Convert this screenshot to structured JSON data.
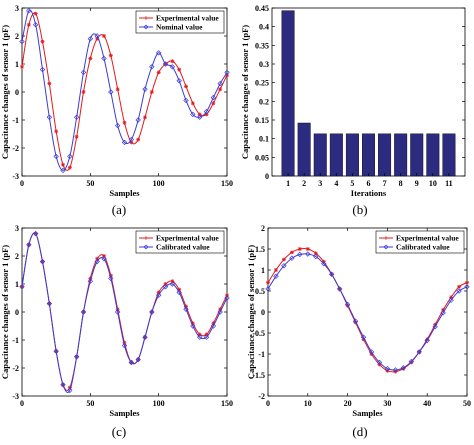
{
  "chart_data": [
    {
      "type": "line",
      "caption": "(a)",
      "xlabel": "Samples",
      "ylabel": "Capacitance changes of sensor 1 (pF)",
      "xlim": [
        0,
        150
      ],
      "ylim": [
        -3,
        3
      ],
      "xticks": [
        0,
        50,
        100,
        150
      ],
      "yticks": [
        -3,
        -2,
        -1,
        0,
        1,
        2,
        3
      ],
      "legend_position": "top-right",
      "series": [
        {
          "name": "Experimental value",
          "color": "#e31a1c",
          "marker": "asterisk",
          "x": [
            0,
            5,
            10,
            15,
            20,
            25,
            30,
            35,
            40,
            45,
            50,
            55,
            60,
            65,
            70,
            75,
            80,
            85,
            90,
            95,
            100,
            105,
            110,
            115,
            120,
            125,
            130,
            135,
            140,
            145,
            150
          ],
          "y": [
            0.9,
            2.4,
            2.8,
            1.8,
            0.3,
            -1.4,
            -2.6,
            -2.7,
            -1.6,
            0.0,
            1.2,
            1.9,
            2.0,
            1.3,
            0.1,
            -1.1,
            -1.8,
            -1.7,
            -0.9,
            0.0,
            0.7,
            1.0,
            1.1,
            0.8,
            0.2,
            -0.4,
            -0.8,
            -0.8,
            -0.4,
            0.1,
            0.6
          ]
        },
        {
          "name": "Nominal value",
          "color": "#3b3bd6",
          "marker": "diamond",
          "x": [
            0,
            5,
            10,
            15,
            20,
            25,
            30,
            35,
            40,
            45,
            50,
            55,
            60,
            65,
            70,
            75,
            80,
            85,
            90,
            95,
            100,
            105,
            110,
            115,
            120,
            125,
            130,
            135,
            140,
            145,
            150
          ],
          "y": [
            1.8,
            2.9,
            2.4,
            0.8,
            -0.9,
            -2.3,
            -2.8,
            -2.3,
            -0.9,
            0.7,
            1.9,
            2.0,
            1.2,
            0.0,
            -1.2,
            -1.8,
            -1.7,
            -1.0,
            0.1,
            0.9,
            1.4,
            1.0,
            0.9,
            0.4,
            -0.3,
            -0.8,
            -0.9,
            -0.7,
            -0.2,
            0.3,
            0.7
          ]
        }
      ]
    },
    {
      "type": "bar",
      "caption": "(b)",
      "xlabel": "Iterations",
      "ylabel": "Capacitance changes of sensor 1 (pF)",
      "ylim": [
        0,
        0.45
      ],
      "yticks": [
        0,
        0.05,
        0.1,
        0.15,
        0.2,
        0.25,
        0.3,
        0.35,
        0.4,
        0.45
      ],
      "ytick_labels": [
        "0",
        "0.05",
        "0.1",
        "0.15",
        "0.2",
        "0.25",
        "0.3",
        "0.35",
        "0.4",
        "0.45"
      ],
      "categories": [
        "1",
        "2",
        "3",
        "4",
        "5",
        "6",
        "7",
        "8",
        "9",
        "10",
        "11"
      ],
      "values": [
        0.443,
        0.142,
        0.113,
        0.113,
        0.113,
        0.113,
        0.113,
        0.113,
        0.113,
        0.113,
        0.113
      ],
      "color": "#2b2b80"
    },
    {
      "type": "line",
      "caption": "(c)",
      "xlabel": "Samples",
      "ylabel": "Capacitance changes of sensor 1 (pF)",
      "xlim": [
        0,
        150
      ],
      "ylim": [
        -3,
        3
      ],
      "xticks": [
        0,
        50,
        100,
        150
      ],
      "yticks": [
        -3,
        -2,
        -1,
        0,
        1,
        2,
        3
      ],
      "legend_position": "top-right",
      "series": [
        {
          "name": "Experimental value",
          "color": "#e31a1c",
          "marker": "asterisk",
          "x": [
            0,
            5,
            10,
            15,
            20,
            25,
            30,
            35,
            40,
            45,
            50,
            55,
            60,
            65,
            70,
            75,
            80,
            85,
            90,
            95,
            100,
            105,
            110,
            115,
            120,
            125,
            130,
            135,
            140,
            145,
            150
          ],
          "y": [
            0.9,
            2.4,
            2.8,
            1.8,
            0.3,
            -1.4,
            -2.6,
            -2.7,
            -1.6,
            0.0,
            1.2,
            1.9,
            2.0,
            1.3,
            0.1,
            -1.1,
            -1.8,
            -1.7,
            -0.9,
            0.0,
            0.7,
            1.0,
            1.1,
            0.8,
            0.2,
            -0.4,
            -0.8,
            -0.8,
            -0.4,
            0.1,
            0.6
          ]
        },
        {
          "name": "Calibrated value",
          "color": "#3b3bd6",
          "marker": "diamond",
          "x": [
            0,
            5,
            10,
            15,
            20,
            25,
            30,
            35,
            40,
            45,
            50,
            55,
            60,
            65,
            70,
            75,
            80,
            85,
            90,
            95,
            100,
            105,
            110,
            115,
            120,
            125,
            130,
            135,
            140,
            145,
            150
          ],
          "y": [
            0.9,
            2.4,
            2.8,
            1.8,
            0.3,
            -1.4,
            -2.6,
            -2.8,
            -1.6,
            0.0,
            1.1,
            1.8,
            1.9,
            1.2,
            0.0,
            -1.2,
            -1.8,
            -1.7,
            -0.9,
            0.0,
            0.6,
            0.9,
            1.0,
            0.7,
            0.1,
            -0.5,
            -0.9,
            -0.9,
            -0.5,
            0.0,
            0.5
          ]
        }
      ]
    },
    {
      "type": "line",
      "caption": "(d)",
      "xlabel": "Samples",
      "ylabel": "Capacitance changes of sensor 1 (pF)",
      "xlim": [
        0,
        50
      ],
      "ylim": [
        -2,
        2
      ],
      "xticks": [
        0,
        10,
        20,
        30,
        40,
        50
      ],
      "yticks": [
        -2,
        -1.5,
        -1,
        -0.5,
        0,
        0.5,
        1,
        1.5,
        2
      ],
      "ytick_labels": [
        "-2",
        "-1.5",
        "-1",
        "-0.5",
        "0",
        "0.5",
        "1",
        "1.5",
        "2"
      ],
      "legend_position": "top-right",
      "series": [
        {
          "name": "Experimental value",
          "color": "#e31a1c",
          "marker": "asterisk",
          "x": [
            0,
            2,
            4,
            6,
            8,
            10,
            12,
            14,
            16,
            18,
            20,
            22,
            24,
            26,
            28,
            30,
            32,
            34,
            36,
            38,
            40,
            42,
            44,
            46,
            48,
            50
          ],
          "y": [
            0.7,
            1.0,
            1.25,
            1.42,
            1.5,
            1.5,
            1.4,
            1.2,
            0.9,
            0.55,
            0.15,
            -0.25,
            -0.65,
            -1.0,
            -1.25,
            -1.4,
            -1.42,
            -1.35,
            -1.2,
            -0.95,
            -0.65,
            -0.3,
            0.05,
            0.35,
            0.6,
            0.7
          ]
        },
        {
          "name": "Calibrated value",
          "color": "#3b3bd6",
          "marker": "diamond",
          "x": [
            0,
            2,
            4,
            6,
            8,
            10,
            12,
            14,
            16,
            18,
            20,
            22,
            24,
            26,
            28,
            30,
            32,
            34,
            36,
            38,
            40,
            42,
            44,
            46,
            48,
            50
          ],
          "y": [
            0.55,
            0.85,
            1.1,
            1.28,
            1.37,
            1.38,
            1.32,
            1.15,
            0.9,
            0.55,
            0.18,
            -0.22,
            -0.6,
            -0.95,
            -1.2,
            -1.35,
            -1.38,
            -1.33,
            -1.18,
            -0.95,
            -0.68,
            -0.35,
            -0.02,
            0.28,
            0.5,
            0.6
          ]
        }
      ]
    }
  ]
}
